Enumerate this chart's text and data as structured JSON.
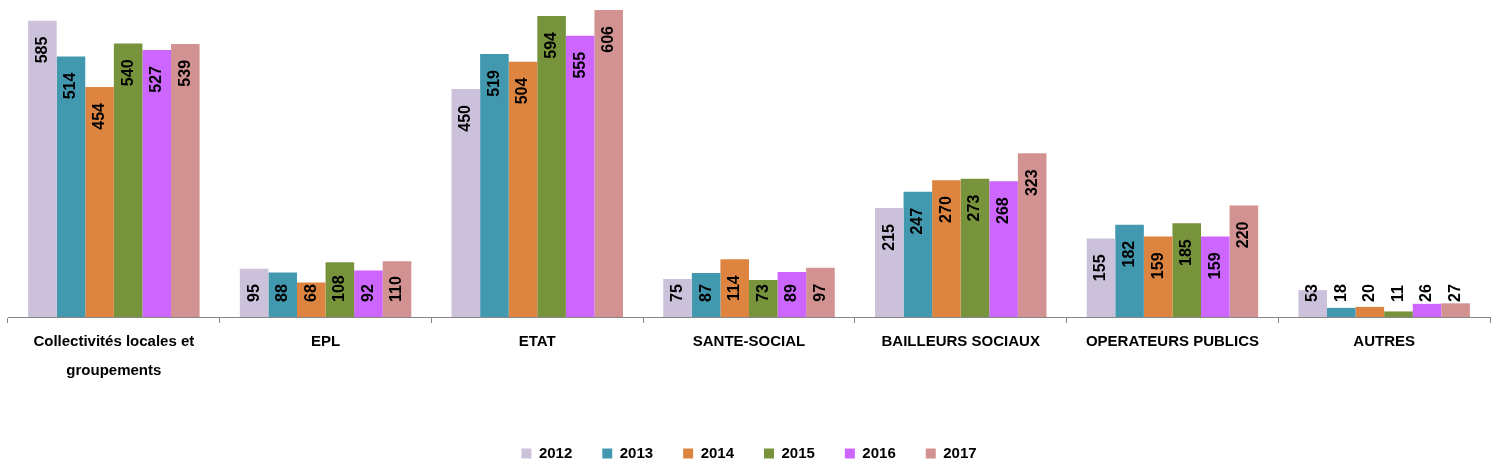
{
  "chart_data": {
    "type": "bar",
    "categories": [
      "Collectivités locales et groupements",
      "EPL",
      "ETAT",
      "SANTE-SOCIAL",
      "BAILLEURS SOCIAUX",
      "OPERATEURS PUBLICS",
      "AUTRES"
    ],
    "series": [
      {
        "name": "2012",
        "color": "#ccc1da",
        "values": [
          585,
          95,
          450,
          75,
          215,
          155,
          53
        ]
      },
      {
        "name": "2013",
        "color": "#4198af",
        "values": [
          514,
          88,
          519,
          87,
          247,
          182,
          18
        ]
      },
      {
        "name": "2014",
        "color": "#dd8540",
        "values": [
          454,
          68,
          504,
          114,
          270,
          159,
          20
        ]
      },
      {
        "name": "2015",
        "color": "#77933c",
        "values": [
          540,
          108,
          594,
          73,
          273,
          185,
          11
        ]
      },
      {
        "name": "2016",
        "color": "#cc66ff",
        "values": [
          527,
          92,
          555,
          89,
          268,
          159,
          26
        ]
      },
      {
        "name": "2017",
        "color": "#d39292",
        "values": [
          539,
          110,
          606,
          97,
          323,
          220,
          27
        ]
      }
    ],
    "data_labels": true,
    "legend": "bottom",
    "tick_labels": "x"
  }
}
